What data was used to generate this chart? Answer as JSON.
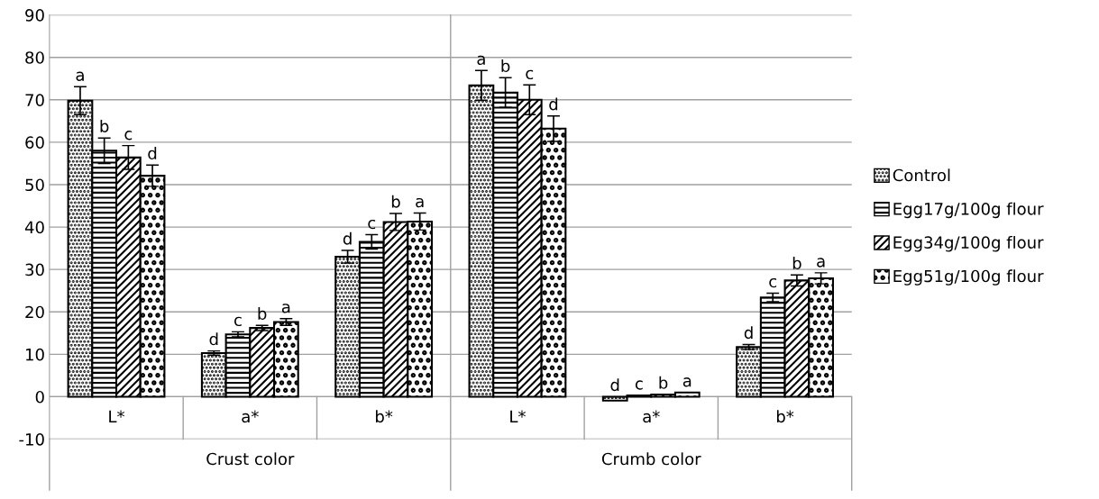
{
  "chart_data": {
    "type": "bar",
    "categories": [
      "L*",
      "a*",
      "b*",
      "L*",
      "a*",
      "b*"
    ],
    "annotations": [
      "Crust color",
      "Crumb color"
    ],
    "series": [
      {
        "name": "Control",
        "color": "#000000",
        "values": [
          69.8,
          10.3,
          33.0,
          73.4,
          -0.9,
          11.7
        ],
        "errors": [
          3.3,
          0.5,
          1.5,
          3.5,
          null,
          0.6
        ],
        "value_labels": [
          "a",
          "d",
          "d",
          "a",
          "d",
          "d"
        ]
      },
      {
        "name": "Egg17g/100g flour",
        "color": "#000000",
        "values": [
          58.0,
          14.7,
          36.5,
          71.7,
          0.3,
          23.4
        ],
        "errors": [
          3.0,
          0.6,
          1.7,
          3.5,
          null,
          1.0
        ],
        "value_labels": [
          "b",
          "c",
          "c",
          "b",
          "c",
          "c"
        ]
      },
      {
        "name": "Egg34g/100g flour",
        "color": "#000000",
        "values": [
          56.4,
          16.2,
          41.2,
          70.0,
          0.5,
          27.4
        ],
        "errors": [
          2.8,
          0.6,
          2.0,
          3.5,
          null,
          1.3
        ],
        "value_labels": [
          "c",
          "b",
          "b",
          "c",
          "b",
          "b"
        ]
      },
      {
        "name": "Egg51g/100g flour",
        "color": "#000000",
        "values": [
          52.1,
          17.6,
          41.3,
          63.2,
          1.0,
          27.9
        ],
        "errors": [
          2.5,
          0.8,
          2.0,
          3.0,
          null,
          1.3
        ],
        "value_labels": [
          "d",
          "a",
          "a",
          "d",
          "a",
          "a"
        ]
      }
    ],
    "ylim": [
      -10,
      90
    ],
    "yticks": [
      -10,
      0,
      10,
      20,
      30,
      40,
      50,
      60,
      70,
      80,
      90
    ],
    "grid": "y",
    "legend": "right"
  }
}
